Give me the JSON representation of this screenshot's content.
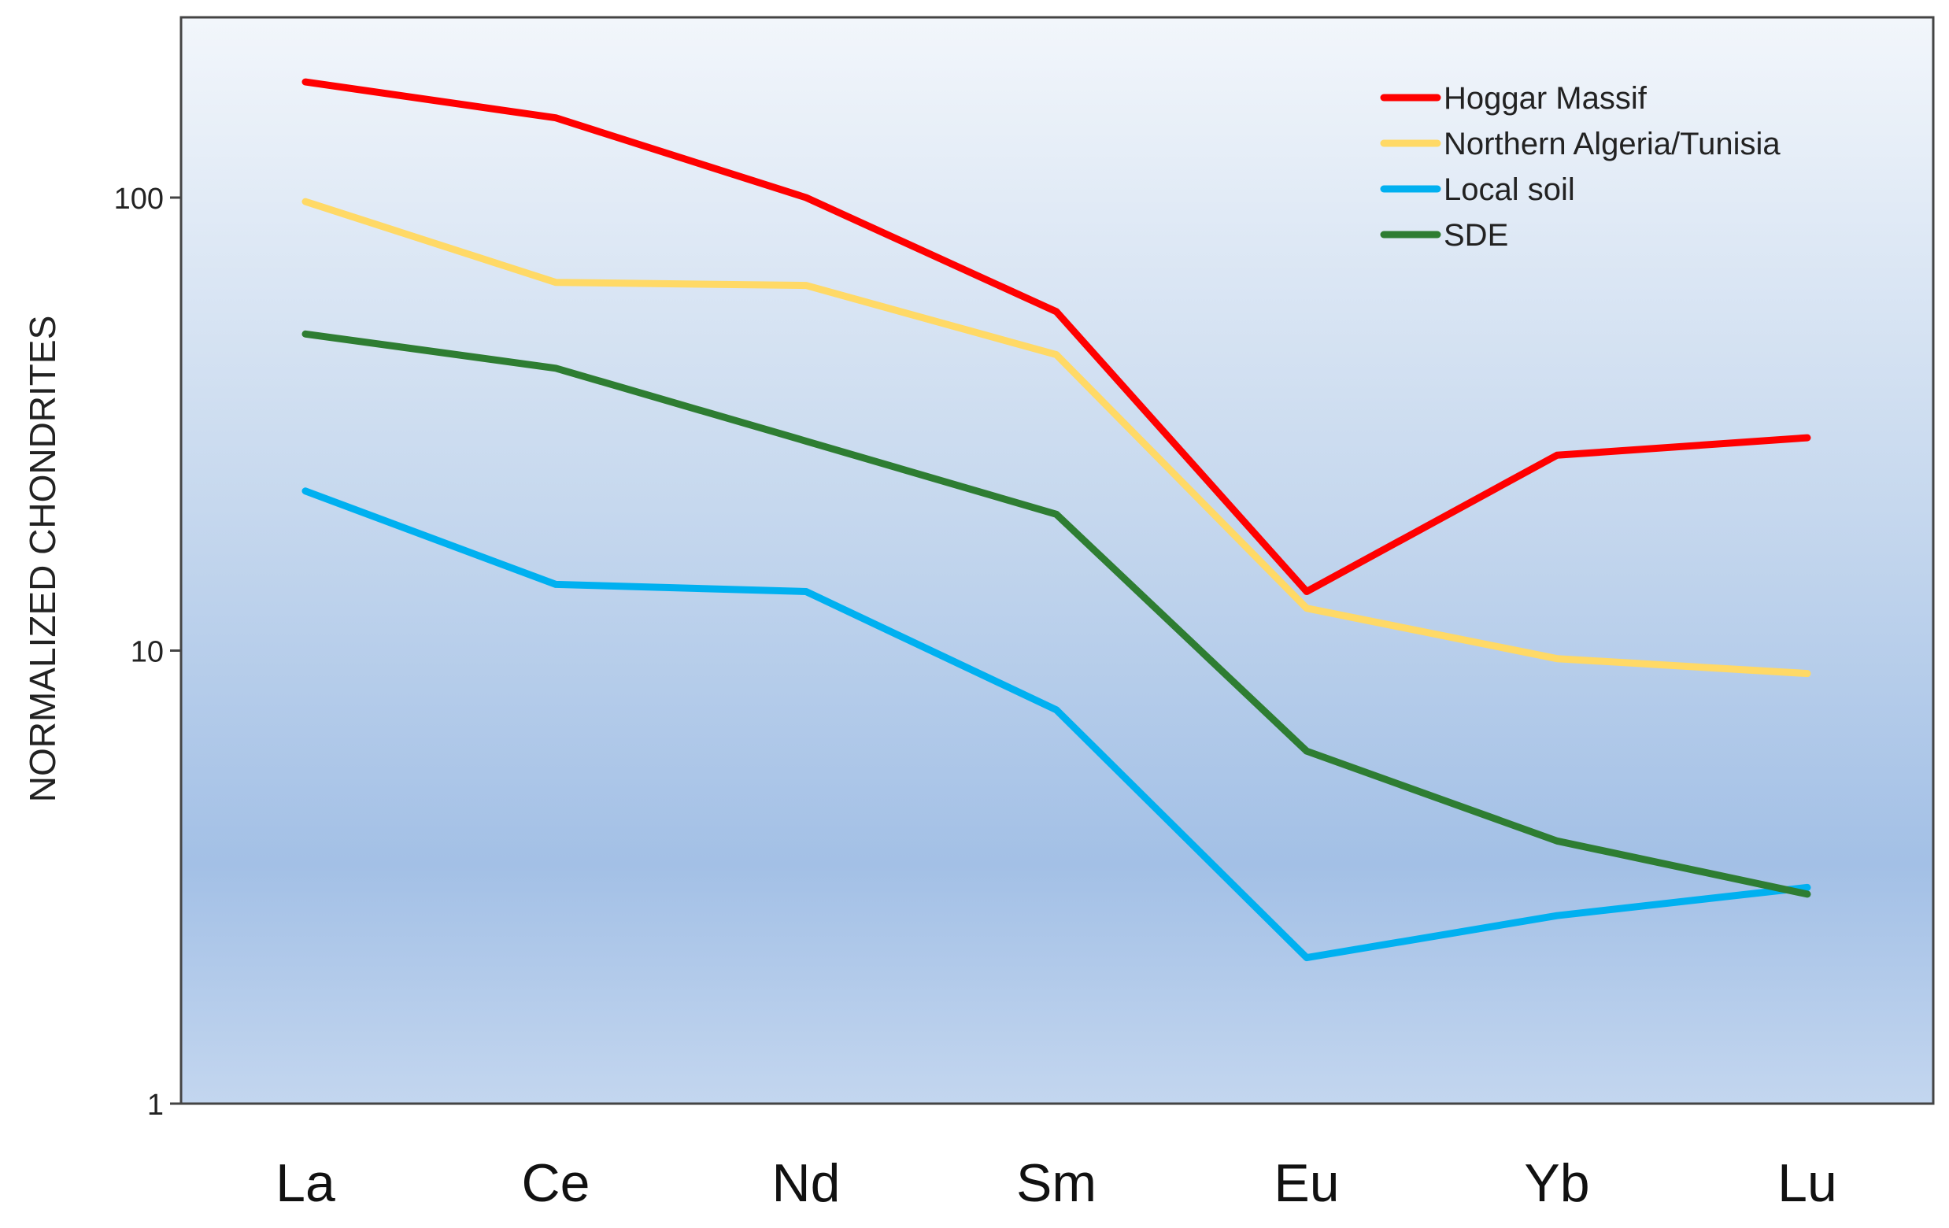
{
  "chart_data": {
    "type": "line",
    "title": "",
    "xlabel": "",
    "ylabel": "NORMALIZED CHONDRITES",
    "yscale": "log",
    "ylim": [
      1,
      250
    ],
    "yticks": [
      1,
      10,
      100
    ],
    "ytick_labels": [
      "1",
      "10",
      "100"
    ],
    "grid": false,
    "legend_position": "top-right",
    "categories": [
      "La",
      "Ce",
      "Nd",
      "Sm",
      "Eu",
      "Yb",
      "Lu"
    ],
    "series": [
      {
        "name": "Hoggar Massif",
        "color": "#ff0000",
        "values": [
          180,
          150,
          100,
          56,
          13.5,
          27,
          29.5
        ]
      },
      {
        "name": "Northern Algeria/Tunisia",
        "color": "#ffd966",
        "values": [
          98,
          65,
          64,
          45,
          12.4,
          9.6,
          8.9
        ]
      },
      {
        "name": "Local soil",
        "color": "#00b0f0",
        "values": [
          22.5,
          14,
          13.5,
          7.4,
          2.1,
          2.6,
          3.0
        ]
      },
      {
        "name": "SDE",
        "color": "#2e7d32",
        "values": [
          50,
          42,
          29,
          20,
          6,
          3.8,
          2.9
        ]
      }
    ]
  }
}
